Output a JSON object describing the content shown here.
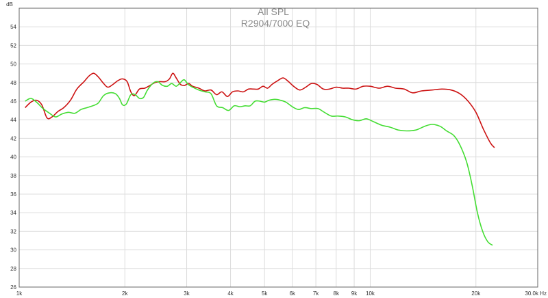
{
  "chart_data": {
    "type": "line",
    "title": "All SPL",
    "subtitle": "R2904/7000 EQ",
    "xlabel_unit": "Hz",
    "ylabel_unit": "dB",
    "x_scale": "log",
    "xlim": [
      1000,
      30000
    ],
    "ylim": [
      26,
      56
    ],
    "grid": true,
    "legend": "none",
    "x_ticks": [
      {
        "value": 1000,
        "label": "1k"
      },
      {
        "value": 2000,
        "label": "2k"
      },
      {
        "value": 3000,
        "label": "3k"
      },
      {
        "value": 4000,
        "label": "4k"
      },
      {
        "value": 5000,
        "label": "5k"
      },
      {
        "value": 6000,
        "label": "6k"
      },
      {
        "value": 7000,
        "label": "7k"
      },
      {
        "value": 8000,
        "label": "8k"
      },
      {
        "value": 9000,
        "label": "9k"
      },
      {
        "value": 10000,
        "label": "10k"
      },
      {
        "value": 20000,
        "label": "20k"
      },
      {
        "value": 30000,
        "label": "30.0k Hz"
      }
    ],
    "y_ticks": [
      26,
      28,
      30,
      32,
      34,
      36,
      38,
      40,
      42,
      44,
      46,
      48,
      50,
      52,
      54
    ],
    "series": [
      {
        "color": "#cc1111",
        "points": [
          [
            1040,
            45.3
          ],
          [
            1080,
            45.9
          ],
          [
            1120,
            46.1
          ],
          [
            1160,
            45.6
          ],
          [
            1200,
            44.2
          ],
          [
            1240,
            44.3
          ],
          [
            1290,
            44.9
          ],
          [
            1340,
            45.3
          ],
          [
            1400,
            46.1
          ],
          [
            1460,
            47.3
          ],
          [
            1530,
            48.1
          ],
          [
            1580,
            48.7
          ],
          [
            1630,
            49.0
          ],
          [
            1680,
            48.6
          ],
          [
            1740,
            47.9
          ],
          [
            1790,
            47.5
          ],
          [
            1850,
            47.8
          ],
          [
            1910,
            48.2
          ],
          [
            1970,
            48.4
          ],
          [
            2030,
            48.1
          ],
          [
            2080,
            47.0
          ],
          [
            2130,
            46.6
          ],
          [
            2200,
            47.3
          ],
          [
            2280,
            47.4
          ],
          [
            2360,
            47.7
          ],
          [
            2440,
            48.0
          ],
          [
            2520,
            48.1
          ],
          [
            2610,
            48.1
          ],
          [
            2680,
            48.4
          ],
          [
            2740,
            49.0
          ],
          [
            2800,
            48.5
          ],
          [
            2880,
            47.8
          ],
          [
            2960,
            47.7
          ],
          [
            3040,
            47.9
          ],
          [
            3120,
            47.6
          ],
          [
            3250,
            47.4
          ],
          [
            3380,
            47.1
          ],
          [
            3520,
            47.2
          ],
          [
            3650,
            46.7
          ],
          [
            3780,
            47.0
          ],
          [
            3920,
            46.5
          ],
          [
            4050,
            47.0
          ],
          [
            4200,
            47.1
          ],
          [
            4350,
            47.0
          ],
          [
            4500,
            47.3
          ],
          [
            4650,
            47.3
          ],
          [
            4800,
            47.3
          ],
          [
            4950,
            47.6
          ],
          [
            5100,
            47.4
          ],
          [
            5250,
            47.8
          ],
          [
            5450,
            48.2
          ],
          [
            5650,
            48.5
          ],
          [
            5850,
            48.1
          ],
          [
            6050,
            47.6
          ],
          [
            6300,
            47.2
          ],
          [
            6550,
            47.5
          ],
          [
            6800,
            47.9
          ],
          [
            7050,
            47.8
          ],
          [
            7350,
            47.3
          ],
          [
            7650,
            47.3
          ],
          [
            8000,
            47.5
          ],
          [
            8350,
            47.4
          ],
          [
            8700,
            47.4
          ],
          [
            9100,
            47.3
          ],
          [
            9550,
            47.6
          ],
          [
            10000,
            47.6
          ],
          [
            10600,
            47.4
          ],
          [
            11200,
            47.6
          ],
          [
            11800,
            47.4
          ],
          [
            12500,
            47.3
          ],
          [
            13200,
            46.9
          ],
          [
            14000,
            47.1
          ],
          [
            15000,
            47.2
          ],
          [
            16000,
            47.3
          ],
          [
            17000,
            47.2
          ],
          [
            18000,
            46.8
          ],
          [
            19000,
            46.0
          ],
          [
            20000,
            44.8
          ],
          [
            21000,
            43.0
          ],
          [
            22000,
            41.5
          ],
          [
            22600,
            41.0
          ]
        ]
      },
      {
        "color": "#44dd33",
        "points": [
          [
            1040,
            46.0
          ],
          [
            1080,
            46.3
          ],
          [
            1120,
            45.9
          ],
          [
            1170,
            45.2
          ],
          [
            1220,
            44.7
          ],
          [
            1270,
            44.3
          ],
          [
            1320,
            44.6
          ],
          [
            1380,
            44.8
          ],
          [
            1440,
            44.7
          ],
          [
            1500,
            45.1
          ],
          [
            1560,
            45.3
          ],
          [
            1620,
            45.5
          ],
          [
            1680,
            45.8
          ],
          [
            1740,
            46.6
          ],
          [
            1810,
            46.9
          ],
          [
            1880,
            46.8
          ],
          [
            1930,
            46.3
          ],
          [
            1970,
            45.6
          ],
          [
            2020,
            45.7
          ],
          [
            2080,
            46.7
          ],
          [
            2140,
            46.7
          ],
          [
            2200,
            46.3
          ],
          [
            2260,
            46.4
          ],
          [
            2320,
            47.2
          ],
          [
            2400,
            47.9
          ],
          [
            2480,
            48.1
          ],
          [
            2560,
            47.7
          ],
          [
            2640,
            47.6
          ],
          [
            2720,
            47.9
          ],
          [
            2800,
            47.6
          ],
          [
            2880,
            48.0
          ],
          [
            2950,
            48.3
          ],
          [
            3030,
            47.8
          ],
          [
            3120,
            47.5
          ],
          [
            3250,
            47.2
          ],
          [
            3380,
            47.0
          ],
          [
            3520,
            46.8
          ],
          [
            3650,
            45.5
          ],
          [
            3800,
            45.3
          ],
          [
            3950,
            45.0
          ],
          [
            4100,
            45.5
          ],
          [
            4250,
            45.4
          ],
          [
            4400,
            45.5
          ],
          [
            4550,
            45.5
          ],
          [
            4700,
            46.0
          ],
          [
            4850,
            46.0
          ],
          [
            5000,
            45.9
          ],
          [
            5150,
            46.1
          ],
          [
            5350,
            46.2
          ],
          [
            5550,
            46.1
          ],
          [
            5750,
            45.9
          ],
          [
            6000,
            45.4
          ],
          [
            6250,
            45.1
          ],
          [
            6500,
            45.3
          ],
          [
            6800,
            45.2
          ],
          [
            7100,
            45.2
          ],
          [
            7400,
            44.8
          ],
          [
            7750,
            44.4
          ],
          [
            8100,
            44.4
          ],
          [
            8500,
            44.3
          ],
          [
            8900,
            44.0
          ],
          [
            9300,
            43.9
          ],
          [
            9750,
            44.1
          ],
          [
            10200,
            43.8
          ],
          [
            10800,
            43.4
          ],
          [
            11400,
            43.2
          ],
          [
            12000,
            42.9
          ],
          [
            12700,
            42.8
          ],
          [
            13500,
            42.9
          ],
          [
            14300,
            43.3
          ],
          [
            15000,
            43.5
          ],
          [
            15800,
            43.3
          ],
          [
            16500,
            42.8
          ],
          [
            17300,
            42.3
          ],
          [
            18000,
            41.3
          ],
          [
            18800,
            39.5
          ],
          [
            19500,
            37.0
          ],
          [
            20200,
            34.0
          ],
          [
            20900,
            32.0
          ],
          [
            21600,
            30.9
          ],
          [
            22300,
            30.5
          ]
        ]
      }
    ]
  }
}
